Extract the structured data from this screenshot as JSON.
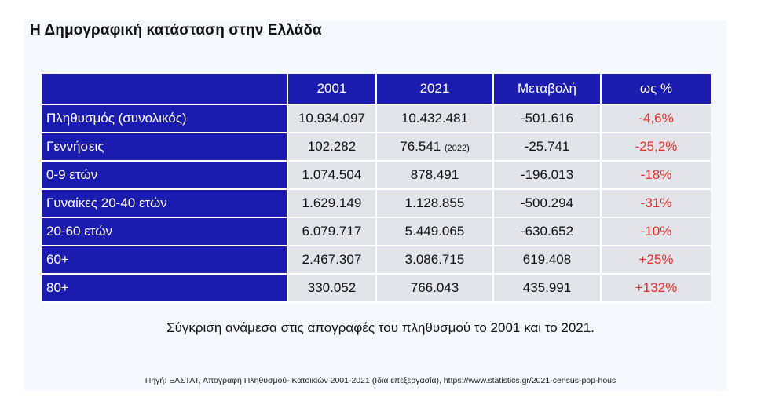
{
  "title": "Η Δημογραφική κατάσταση στην Ελλάδα",
  "table": {
    "headers": [
      "",
      "2001",
      "2021",
      "Μεταβολή",
      "ως %"
    ],
    "rows": [
      {
        "label": "Πληθυσμός (συνολικός)",
        "y2001": "10.934.097",
        "y2021": "10.432.481",
        "y2021_note": "",
        "change": "-501.616",
        "pct": "-4,6%"
      },
      {
        "label": "Γεννήσεις",
        "y2001": "102.282",
        "y2021": "76.541",
        "y2021_note": "(2022)",
        "change": "-25.741",
        "pct": "-25,2%"
      },
      {
        "label": "0-9 ετών",
        "y2001": "1.074.504",
        "y2021": "878.491",
        "y2021_note": "",
        "change": "-196.013",
        "pct": "-18%"
      },
      {
        "label": "Γυναίκες 20-40 ετών",
        "y2001": "1.629.149",
        "y2021": "1.128.855",
        "y2021_note": "",
        "change": "-500.294",
        "pct": "-31%"
      },
      {
        "label": "20-60 ετών",
        "y2001": "6.079.717",
        "y2021": "5.449.065",
        "y2021_note": "",
        "change": "-630.652",
        "pct": "-10%"
      },
      {
        "label": "60+",
        "y2001": "2.467.307",
        "y2021": "3.086.715",
        "y2021_note": "",
        "change": "619.408",
        "pct": "+25%"
      },
      {
        "label": "80+",
        "y2001": "330.052",
        "y2021": "766.043",
        "y2021_note": "",
        "change": "435.991",
        "pct": "+132%"
      }
    ]
  },
  "caption": "Σύγκριση ανάμεσα στις απογραφές του πληθυσμού το 2001 και το 2021.",
  "source": "Πηγή: ΕΛΣΤΑΤ, Απογραφή Πληθυσμού- Κατοικιών 2001-2021 (Ιδια επεξεργασία), https://www.statistics.gr/2021-census-pop-hous",
  "colors": {
    "header_bg": "#1b1bb0",
    "cell_bg": "#e3e4ea",
    "pct_text": "#e8302a"
  }
}
